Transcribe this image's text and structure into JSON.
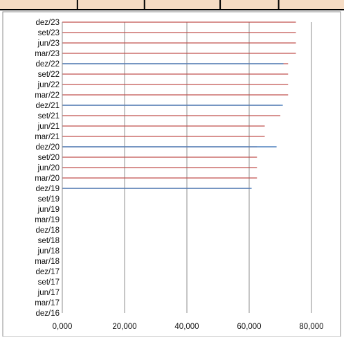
{
  "chart_data": {
    "type": "bar",
    "orientation": "horizontal",
    "categories": [
      "dez/16",
      "mar/17",
      "jun/17",
      "set/17",
      "dez/17",
      "mar/18",
      "jun/18",
      "set/18",
      "dez/18",
      "mar/19",
      "jun/19",
      "set/19",
      "dez/19",
      "mar/20",
      "jun/20",
      "set/20",
      "dez/20",
      "mar/21",
      "jun/21",
      "set/21",
      "dez/21",
      "mar/22",
      "jun/22",
      "set/22",
      "dez/22",
      "mar/23",
      "jun/23",
      "set/23",
      "dez/23"
    ],
    "x_tick_labels": [
      "0,000",
      "20,000",
      "40,000",
      "60,000",
      "80,000"
    ],
    "xlim": [
      0,
      80
    ],
    "x_major_step": 20,
    "grid": "vertical-major",
    "legend": "none",
    "series": [
      {
        "color": "#c0504d",
        "values": [
          null,
          null,
          null,
          null,
          null,
          null,
          null,
          null,
          null,
          null,
          null,
          null,
          60.3,
          62.5,
          62.5,
          62.5,
          62.5,
          65.0,
          65.0,
          70.0,
          70.0,
          72.5,
          72.5,
          72.5,
          72.5,
          75.0,
          75.0,
          75.0,
          75.0
        ]
      },
      {
        "color": "#4f81bd",
        "values": [
          null,
          null,
          null,
          null,
          null,
          null,
          null,
          null,
          null,
          null,
          null,
          null,
          60.8,
          null,
          null,
          null,
          68.8,
          null,
          null,
          null,
          70.8,
          null,
          null,
          null,
          71.0,
          null,
          null,
          null,
          null
        ]
      }
    ]
  },
  "page": {
    "top_strip": {
      "fill_color": "#f6dcc4",
      "border_color": "#000000",
      "divider_fractions": [
        0.225,
        0.42,
        0.64,
        0.81
      ]
    }
  }
}
